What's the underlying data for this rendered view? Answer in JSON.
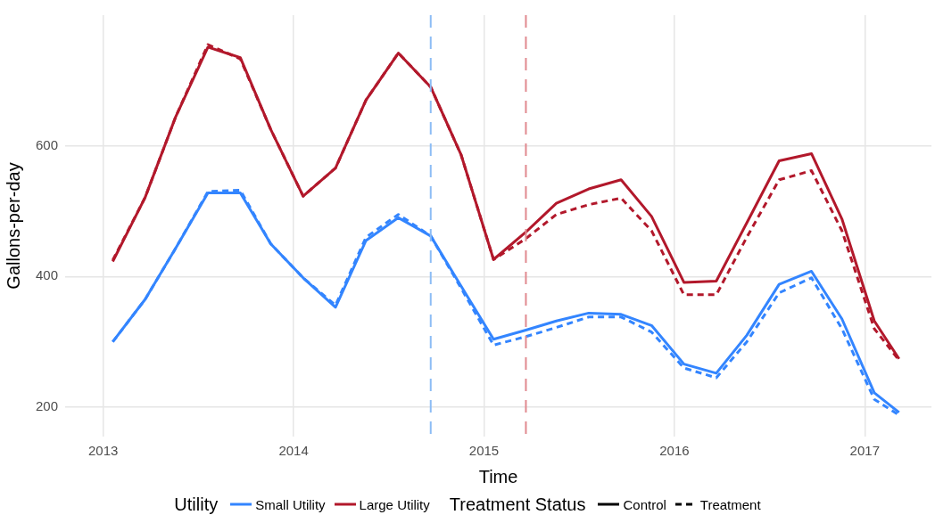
{
  "chart_data": {
    "type": "line",
    "xlabel": "Time",
    "ylabel": "Gallons-per-day",
    "legend_title": "Utility",
    "x": [
      2013.05,
      2013.22,
      2013.38,
      2013.55,
      2013.72,
      2013.88,
      2014.05,
      2014.22,
      2014.38,
      2014.55,
      2014.72,
      2014.88,
      2015.05,
      2015.22,
      2015.38,
      2015.55,
      2015.72,
      2015.88,
      2016.05,
      2016.22,
      2016.38,
      2016.55,
      2016.72,
      2016.88,
      2017.05,
      2017.18
    ],
    "series": [
      {
        "name": "Small Utility",
        "color": "#3385ff",
        "line_style": "solid",
        "values": [
          300,
          365,
          443,
          528,
          528,
          450,
          398,
          353,
          455,
          490,
          462,
          385,
          304,
          318,
          332,
          344,
          342,
          325,
          266,
          252,
          310,
          388,
          408,
          335,
          222,
          192
        ]
      },
      {
        "color": "#3385ff",
        "line_style": "dashed",
        "values": [
          300,
          365,
          443,
          530,
          532,
          450,
          398,
          356,
          460,
          495,
          462,
          382,
          295,
          308,
          322,
          338,
          338,
          315,
          260,
          245,
          300,
          375,
          398,
          320,
          212,
          188
        ]
      },
      {
        "name": "Large Utility",
        "color": "#b2182b",
        "line_style": "solid",
        "values": [
          423,
          521,
          644,
          751,
          735,
          625,
          523,
          566,
          670,
          742,
          690,
          586,
          426,
          468,
          512,
          534,
          548,
          492,
          391,
          393,
          482,
          577,
          588,
          488,
          332,
          274
        ]
      },
      {
        "color": "#b2182b",
        "line_style": "dashed",
        "values": [
          425,
          521,
          644,
          755,
          733,
          625,
          523,
          566,
          670,
          742,
          690,
          586,
          426,
          458,
          495,
          510,
          520,
          470,
          372,
          372,
          460,
          548,
          562,
          470,
          320,
          272
        ]
      }
    ],
    "ref_lines": [
      {
        "axis": "x",
        "value": 2014.72,
        "color": "#8cbcf5",
        "line_style": "dashed"
      },
      {
        "axis": "x",
        "value": 2015.22,
        "color": "#e0898f",
        "line_style": "dashed"
      }
    ],
    "annotations": [
      "Treatment Status",
      "Control",
      "Treatment"
    ],
    "xlim": [
      2012.8,
      2017.35
    ],
    "xticks": [
      2013,
      2014,
      2015,
      2016,
      2017
    ],
    "ylim": [
      155,
      800
    ],
    "yticks": [
      200,
      400,
      600
    ],
    "grid": true,
    "legend": "bottom",
    "marker": "none"
  }
}
